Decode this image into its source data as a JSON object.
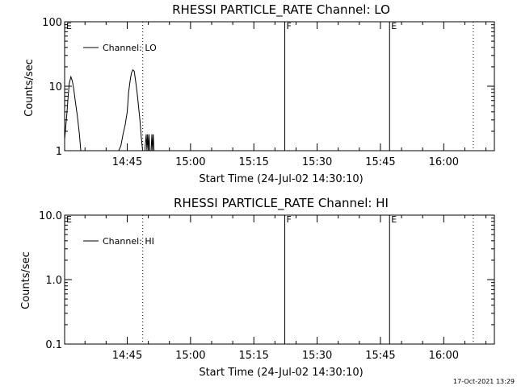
{
  "timestamp": "17-Oct-2021 13:29",
  "chart_data": [
    {
      "type": "line",
      "title": "RHESSI PARTICLE_RATE Channel: LO",
      "xlabel": "Start Time (24-Jul-02 14:30:10)",
      "ylabel": "Counts/sec",
      "y_scale": "log",
      "ylim": [
        1,
        100
      ],
      "y_ticks": [
        1,
        10,
        100
      ],
      "y_tick_labels": [
        "1",
        "10",
        "100"
      ],
      "xlim": [
        "14:30:10",
        "16:12:00"
      ],
      "x_ticks": [
        "14:45",
        "15:00",
        "15:15",
        "15:30",
        "15:45",
        "16:00"
      ],
      "x_tick_labels": [
        "14:45",
        "15:00",
        "15:15",
        "15:30",
        "15:45",
        "16:00"
      ],
      "legend": "top-left",
      "series": [
        {
          "name": "Channel: LO",
          "x": [
            "14:30:10",
            "14:30:40",
            "14:31:00",
            "14:31:15",
            "14:31:40",
            "14:32:00",
            "14:32:20",
            "14:32:40",
            "14:33:10",
            "14:33:40",
            "14:34:00",
            "14:34:30",
            "14:35:10",
            "14:35:30",
            "14:43:00",
            "14:43:30",
            "14:44:00",
            "14:44:30",
            "14:45:00",
            "14:45:20",
            "14:45:40",
            "14:46:00",
            "14:46:20",
            "14:46:40",
            "14:47:00",
            "14:47:20",
            "14:47:40",
            "14:48:00",
            "14:48:20",
            "14:48:40",
            "14:49:10",
            "14:49:30",
            "14:49:40",
            "14:49:50",
            "14:50:00",
            "14:50:10",
            "14:50:20",
            "14:50:40",
            "14:50:50",
            "14:51:00",
            "14:51:10",
            "14:51:20",
            "14:51:30"
          ],
          "y": [
            1.5,
            3.5,
            7,
            11,
            14,
            12,
            9,
            6,
            3.5,
            1.8,
            1,
            1,
            1,
            1,
            1,
            1.2,
            1.8,
            2.5,
            4,
            8,
            12,
            16,
            18,
            17,
            12,
            8,
            5,
            3,
            1.6,
            1,
            1,
            1.8,
            1,
            1.8,
            1,
            1.8,
            1,
            1,
            1.8,
            1,
            1.8,
            1,
            1
          ]
        }
      ],
      "vlines": [
        {
          "time": "14:48:40",
          "style": "dotted",
          "flag": ""
        },
        {
          "time": "15:22:20",
          "style": "solid",
          "flag": "F"
        },
        {
          "time": "15:47:10",
          "style": "solid",
          "flag": "E"
        },
        {
          "time": "16:07:00",
          "style": "dotted",
          "flag": ""
        }
      ],
      "flag_left": "E"
    },
    {
      "type": "line",
      "title": "RHESSI PARTICLE_RATE Channel: HI",
      "xlabel": "Start Time (24-Jul-02 14:30:10)",
      "ylabel": "Counts/sec",
      "y_scale": "log",
      "ylim": [
        0.1,
        10
      ],
      "y_ticks": [
        0.1,
        1,
        10
      ],
      "y_tick_labels": [
        "0.1",
        "1.0",
        "10.0"
      ],
      "xlim": [
        "14:30:10",
        "16:12:00"
      ],
      "x_ticks": [
        "14:45",
        "15:00",
        "15:15",
        "15:30",
        "15:45",
        "16:00"
      ],
      "x_tick_labels": [
        "14:45",
        "15:00",
        "15:15",
        "15:30",
        "15:45",
        "16:00"
      ],
      "legend": "top-left",
      "series": [
        {
          "name": "Channel: HI",
          "x": [],
          "y": []
        }
      ],
      "vlines": [
        {
          "time": "14:48:40",
          "style": "dotted",
          "flag": ""
        },
        {
          "time": "15:22:20",
          "style": "solid",
          "flag": "F"
        },
        {
          "time": "15:47:10",
          "style": "solid",
          "flag": "E"
        },
        {
          "time": "16:07:00",
          "style": "dotted",
          "flag": ""
        }
      ],
      "flag_left": "E"
    }
  ]
}
